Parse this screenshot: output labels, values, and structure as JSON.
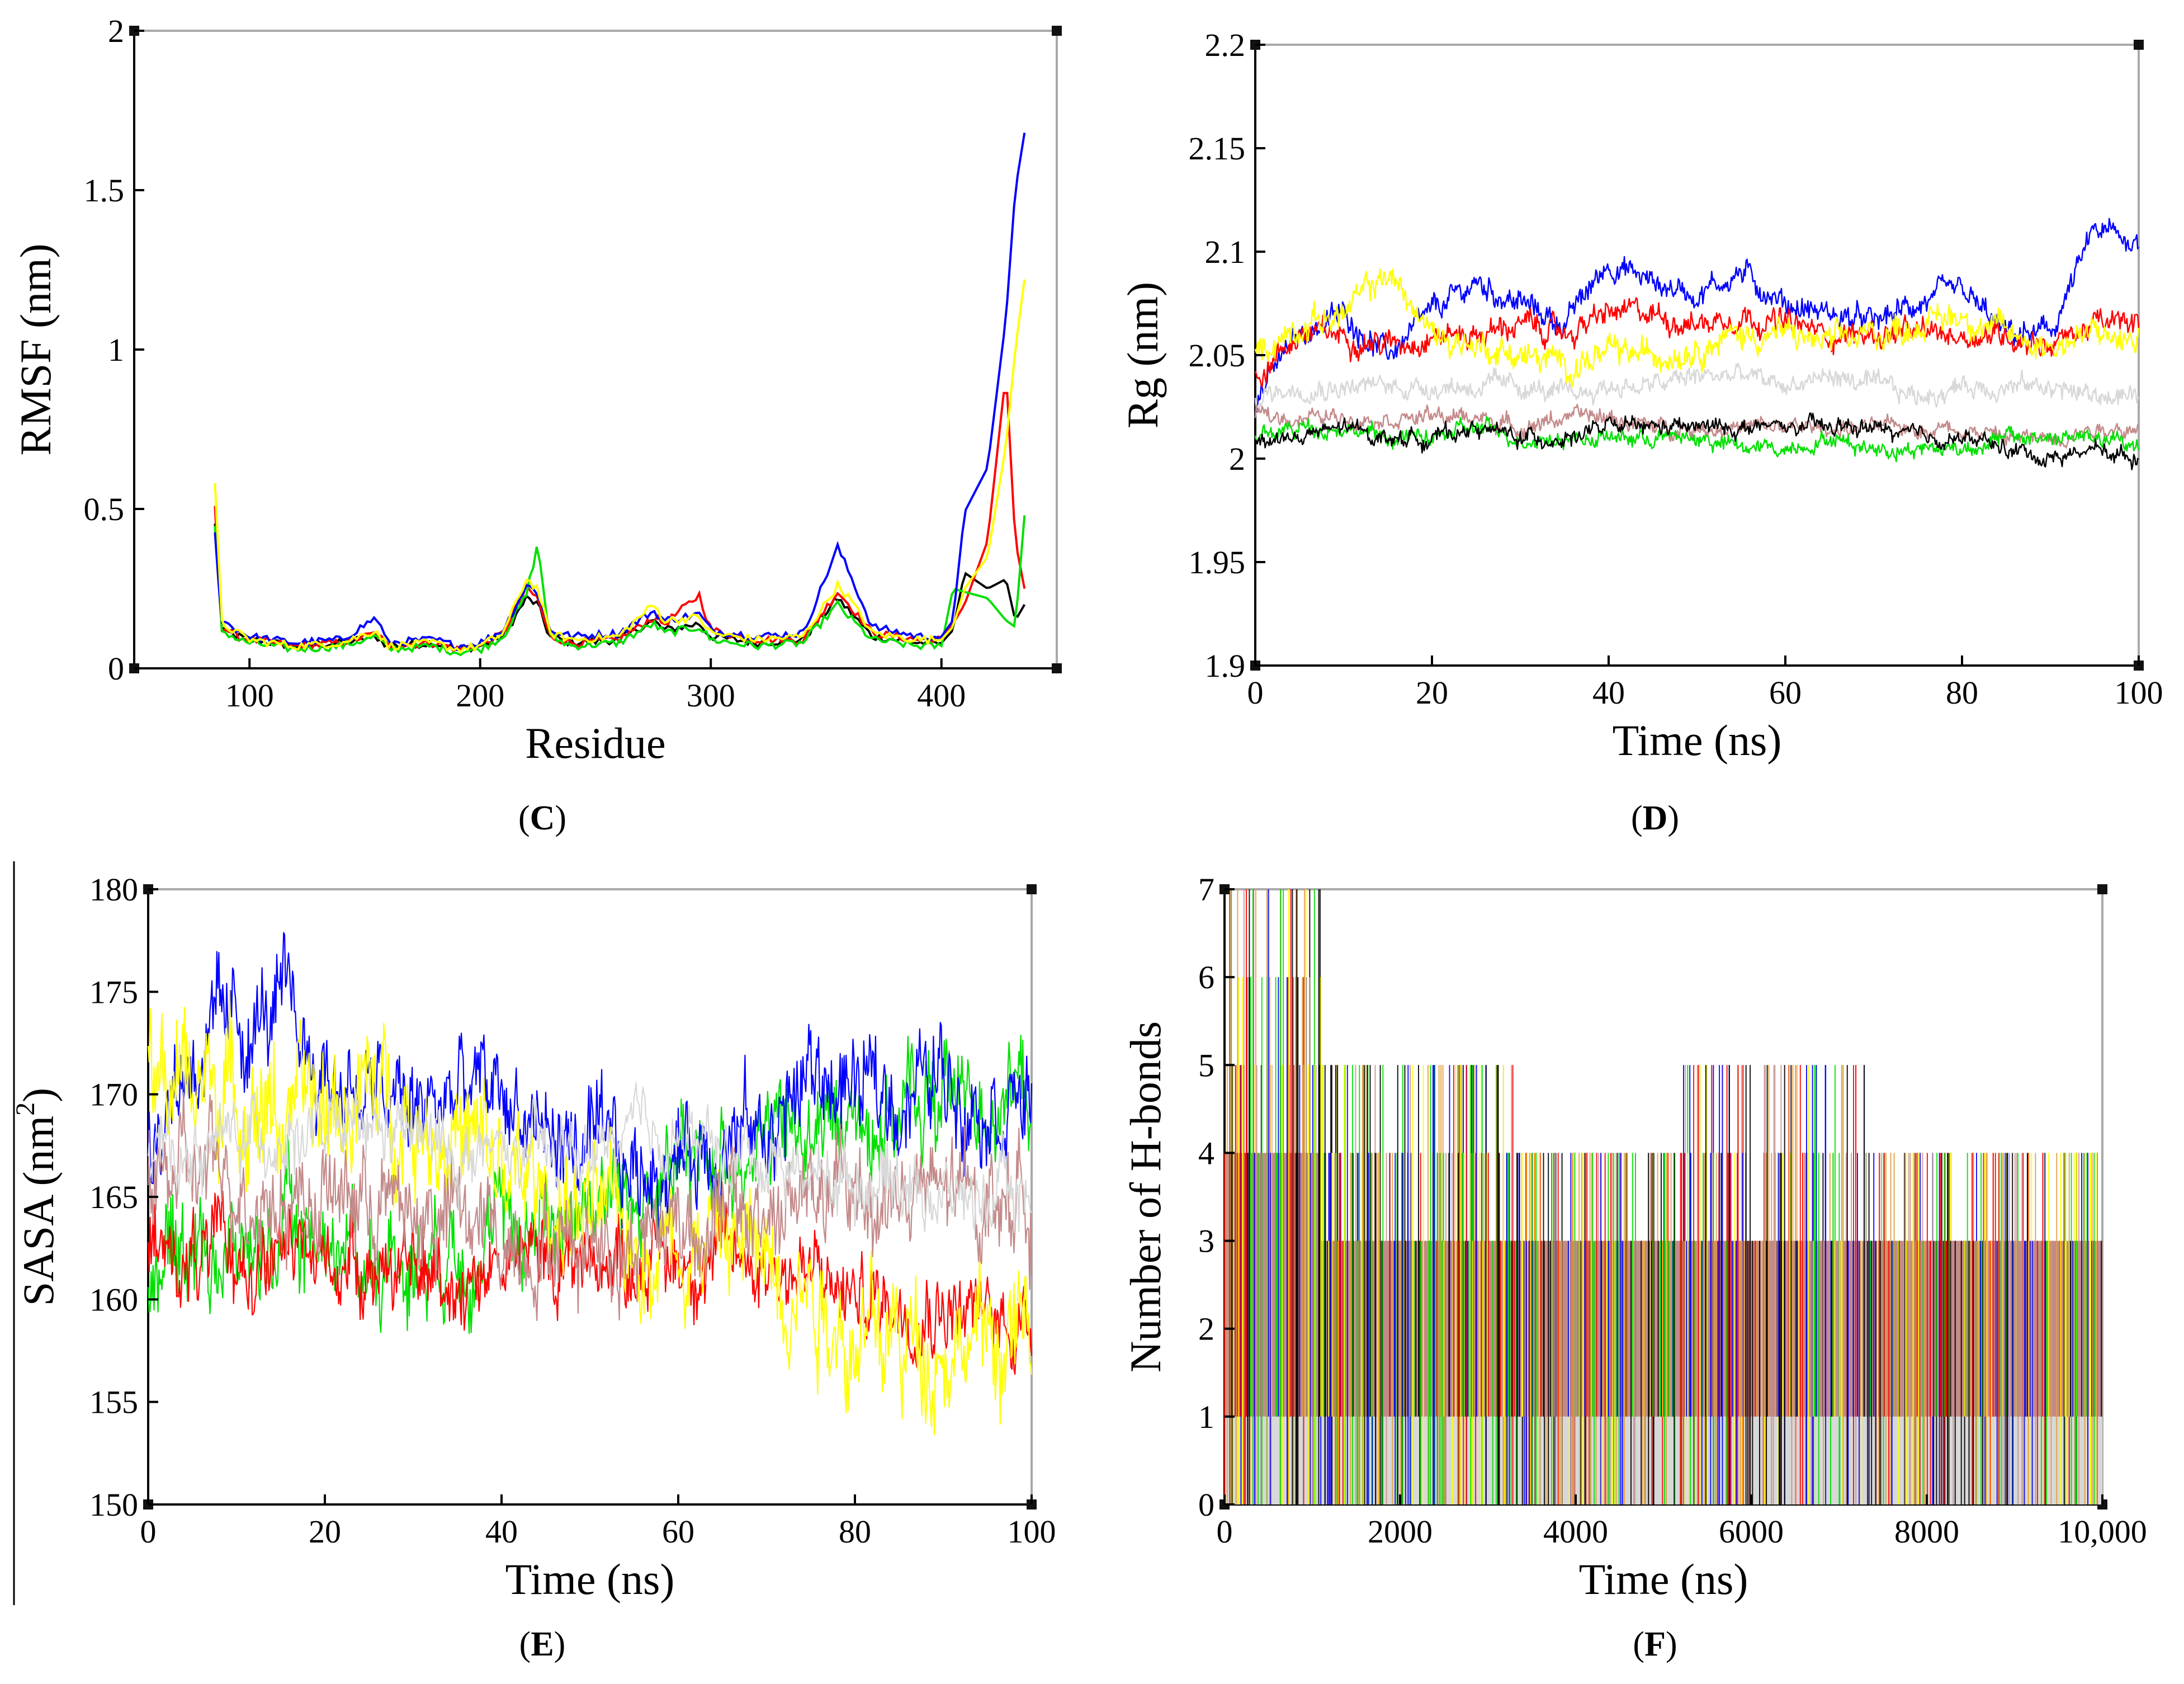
{
  "figure": {
    "captions": [
      "C",
      "D",
      "E",
      "F"
    ]
  },
  "colors": {
    "black": "#000000",
    "red": "#ff0000",
    "green": "#00e000",
    "blue": "#0000ff",
    "yellow": "#ffff00",
    "grey": "#d8d8d8",
    "brown": "#c48a8a",
    "orange": "#e0a040"
  },
  "chart_data": [
    {
      "panel": "C",
      "type": "line",
      "title": "",
      "xlabel": "Residue",
      "ylabel": "RMSF (nm)",
      "xlim": [
        50,
        450
      ],
      "ylim": [
        0,
        2
      ],
      "xticks": [
        "100",
        "200",
        "300",
        "400"
      ],
      "yticks": [
        "0",
        "0.5",
        "1",
        "1.5",
        "2"
      ],
      "x": [
        85,
        88,
        95,
        100,
        110,
        120,
        140,
        155,
        160,
        180,
        190,
        200,
        210,
        220,
        225,
        230,
        240,
        260,
        275,
        280,
        295,
        300,
        320,
        340,
        355,
        360,
        370,
        390,
        400,
        405,
        410,
        420,
        428,
        432,
        436
      ],
      "series": [
        {
          "name": "black",
          "color": "#000000",
          "values": [
            0.45,
            0.12,
            0.1,
            0.09,
            0.08,
            0.07,
            0.08,
            0.1,
            0.07,
            0.08,
            0.06,
            0.07,
            0.1,
            0.22,
            0.2,
            0.1,
            0.08,
            0.09,
            0.15,
            0.12,
            0.14,
            0.1,
            0.08,
            0.09,
            0.22,
            0.18,
            0.1,
            0.08,
            0.08,
            0.12,
            0.3,
            0.25,
            0.28,
            0.15,
            0.2
          ]
        },
        {
          "name": "red",
          "color": "#ff0000",
          "values": [
            0.5,
            0.13,
            0.1,
            0.09,
            0.08,
            0.07,
            0.08,
            0.11,
            0.07,
            0.08,
            0.06,
            0.07,
            0.11,
            0.25,
            0.22,
            0.1,
            0.08,
            0.09,
            0.16,
            0.14,
            0.23,
            0.12,
            0.09,
            0.09,
            0.24,
            0.2,
            0.11,
            0.09,
            0.09,
            0.14,
            0.2,
            0.4,
            0.93,
            0.4,
            0.25
          ]
        },
        {
          "name": "green",
          "color": "#00e000",
          "values": [
            0.44,
            0.12,
            0.09,
            0.08,
            0.07,
            0.06,
            0.07,
            0.1,
            0.06,
            0.07,
            0.05,
            0.06,
            0.1,
            0.23,
            0.39,
            0.1,
            0.07,
            0.08,
            0.14,
            0.11,
            0.13,
            0.09,
            0.07,
            0.08,
            0.2,
            0.16,
            0.09,
            0.07,
            0.07,
            0.25,
            0.24,
            0.22,
            0.15,
            0.13,
            0.48
          ]
        },
        {
          "name": "blue",
          "color": "#0000ff",
          "values": [
            0.42,
            0.15,
            0.12,
            0.1,
            0.09,
            0.08,
            0.09,
            0.16,
            0.08,
            0.09,
            0.07,
            0.08,
            0.12,
            0.26,
            0.24,
            0.12,
            0.1,
            0.11,
            0.18,
            0.15,
            0.17,
            0.12,
            0.1,
            0.11,
            0.38,
            0.3,
            0.13,
            0.1,
            0.1,
            0.15,
            0.49,
            0.63,
            1.1,
            1.5,
            1.68
          ]
        },
        {
          "name": "yellow",
          "color": "#ffff00",
          "values": [
            0.57,
            0.14,
            0.11,
            0.09,
            0.08,
            0.07,
            0.08,
            0.12,
            0.07,
            0.08,
            0.06,
            0.07,
            0.11,
            0.28,
            0.25,
            0.11,
            0.09,
            0.1,
            0.2,
            0.15,
            0.16,
            0.11,
            0.09,
            0.1,
            0.26,
            0.22,
            0.11,
            0.09,
            0.09,
            0.13,
            0.25,
            0.35,
            0.7,
            1.0,
            1.22
          ]
        }
      ]
    },
    {
      "panel": "D",
      "type": "line",
      "title": "",
      "xlabel": "Time (ns)",
      "ylabel": "Rg (nm)",
      "xlim": [
        0,
        100
      ],
      "ylim": [
        1.9,
        2.2
      ],
      "xticks": [
        "0",
        "20",
        "40",
        "60",
        "80",
        "100"
      ],
      "yticks": [
        "1.9",
        "1.95",
        "2",
        "2.05",
        "2.1",
        "2.15",
        "2.2"
      ],
      "x": [
        0,
        5,
        10,
        15,
        20,
        25,
        30,
        35,
        40,
        45,
        50,
        55,
        60,
        65,
        70,
        75,
        80,
        85,
        90,
        95,
        100
      ],
      "series": [
        {
          "name": "blue",
          "color": "#0000ff",
          "values": [
            2.03,
            2.06,
            2.07,
            2.05,
            2.07,
            2.085,
            2.075,
            2.065,
            2.095,
            2.085,
            2.08,
            2.09,
            2.075,
            2.07,
            2.065,
            2.075,
            2.08,
            2.06,
            2.06,
            2.11,
            2.105
          ],
          "noise": 0.006
        },
        {
          "name": "red",
          "color": "#ff0000",
          "values": [
            2.04,
            2.06,
            2.06,
            2.055,
            2.06,
            2.06,
            2.065,
            2.06,
            2.07,
            2.07,
            2.065,
            2.07,
            2.065,
            2.06,
            2.06,
            2.06,
            2.06,
            2.06,
            2.055,
            2.065,
            2.065
          ],
          "noise": 0.006
        },
        {
          "name": "yellow",
          "color": "#ffff00",
          "values": [
            2.05,
            2.065,
            2.07,
            2.09,
            2.06,
            2.055,
            2.05,
            2.045,
            2.05,
            2.05,
            2.055,
            2.06,
            2.06,
            2.055,
            2.06,
            2.065,
            2.07,
            2.06,
            2.055,
            2.06,
            2.055
          ],
          "noise": 0.007
        },
        {
          "name": "grey",
          "color": "#d8d8d8",
          "values": [
            2.03,
            2.035,
            2.035,
            2.035,
            2.035,
            2.035,
            2.035,
            2.03,
            2.035,
            2.035,
            2.04,
            2.04,
            2.035,
            2.04,
            2.035,
            2.03,
            2.035,
            2.035,
            2.035,
            2.03,
            2.03
          ],
          "noise": 0.005
        },
        {
          "name": "brown",
          "color": "#c48a8a",
          "values": [
            2.02,
            2.02,
            2.02,
            2.02,
            2.02,
            2.02,
            2.015,
            2.02,
            2.02,
            2.015,
            2.015,
            2.015,
            2.015,
            2.015,
            2.015,
            2.015,
            2.015,
            2.01,
            2.01,
            2.015,
            2.015
          ],
          "noise": 0.004
        },
        {
          "name": "green",
          "color": "#00e000",
          "values": [
            2.01,
            2.015,
            2.015,
            2.01,
            2.01,
            2.015,
            2.01,
            2.01,
            2.01,
            2.01,
            2.01,
            2.005,
            2.005,
            2.01,
            2.005,
            2.005,
            2.005,
            2.01,
            2.01,
            2.01,
            2.005
          ],
          "noise": 0.004
        },
        {
          "name": "black",
          "color": "#000000",
          "values": [
            2.01,
            2.01,
            2.015,
            2.01,
            2.01,
            2.015,
            2.01,
            2.01,
            2.015,
            2.015,
            2.015,
            2.015,
            2.015,
            2.015,
            2.015,
            2.01,
            2.01,
            2.005,
            2.0,
            2.005,
            2.0
          ],
          "noise": 0.004
        }
      ]
    },
    {
      "panel": "E",
      "type": "line",
      "title": "",
      "xlabel": "Time (ns)",
      "ylabel": "SASA (nm2)",
      "xlim": [
        0,
        100
      ],
      "ylim": [
        150,
        180
      ],
      "xticks": [
        "0",
        "20",
        "40",
        "60",
        "80",
        "100"
      ],
      "yticks": [
        "150",
        "155",
        "160",
        "165",
        "170",
        "175",
        "180"
      ],
      "x": [
        0,
        5,
        10,
        15,
        20,
        25,
        30,
        35,
        40,
        45,
        50,
        55,
        60,
        65,
        70,
        75,
        80,
        85,
        90,
        95,
        100
      ],
      "series": [
        {
          "name": "green",
          "color": "#00e000",
          "values": [
            162,
            163,
            162,
            163,
            163,
            162,
            162,
            163,
            163,
            164,
            165,
            165,
            166,
            167,
            168,
            168,
            169,
            169,
            170,
            170,
            170
          ],
          "noise": 2.5
        },
        {
          "name": "red",
          "color": "#ff0000",
          "values": [
            162,
            162,
            162,
            162,
            162,
            162,
            161,
            161,
            162,
            162,
            162,
            162,
            162,
            162,
            162,
            161,
            160,
            160,
            160,
            159,
            159
          ],
          "noise": 2.0
        },
        {
          "name": "blue",
          "color": "#0000ff",
          "values": [
            168,
            172,
            173,
            174,
            171,
            170,
            169,
            170,
            170,
            168,
            167,
            166,
            167,
            168,
            168,
            171,
            170,
            170,
            171,
            170,
            170
          ],
          "noise": 2.5
        },
        {
          "name": "yellow",
          "color": "#ffff00",
          "values": [
            170,
            171,
            170,
            169,
            169,
            170,
            169,
            168,
            166,
            165,
            164,
            163,
            163,
            163,
            162,
            161,
            158,
            158,
            158,
            158,
            158
          ],
          "noise": 3.0
        },
        {
          "name": "brown",
          "color": "#c48a8a",
          "values": [
            166,
            166,
            166,
            165,
            165,
            165,
            164,
            164,
            163,
            163,
            163,
            163,
            164,
            164,
            164,
            165,
            165,
            165,
            165,
            165,
            165
          ],
          "noise": 2.5
        },
        {
          "name": "grey",
          "color": "#d8d8d8",
          "values": [
            167,
            167,
            168,
            168,
            168,
            168,
            168,
            167,
            167,
            167,
            167,
            168,
            168,
            167,
            167,
            166,
            166,
            166,
            165,
            165,
            165
          ],
          "noise": 1.6
        }
      ]
    },
    {
      "panel": "F",
      "type": "bar",
      "title": "",
      "xlabel": "Time (ns)",
      "ylabel": "Number of H-bonds",
      "xlim": [
        0,
        10000
      ],
      "ylim": [
        0,
        7
      ],
      "xticks": [
        "0",
        "2000",
        "4000",
        "6000",
        "8000",
        "10,000"
      ],
      "yticks": [
        "0",
        "1",
        "2",
        "3",
        "4",
        "5",
        "6",
        "7"
      ],
      "bands": [
        {
          "name": "grey",
          "color": "#d8d8d8",
          "x0": 0,
          "x1": 10000,
          "y0": 0,
          "y1": 1
        },
        {
          "name": "brown",
          "color": "#c48a8a",
          "x0": 0,
          "x1": 1100,
          "y0": 1,
          "y1": 4
        },
        {
          "name": "brown",
          "color": "#c48a8a",
          "x0": 1100,
          "x1": 10000,
          "y0": 1,
          "y1": 3
        }
      ],
      "series": [
        {
          "name": "brown",
          "color": "#c48a8a"
        },
        {
          "name": "yellow",
          "color": "#ffff00"
        },
        {
          "name": "blue",
          "color": "#0000ff"
        },
        {
          "name": "green",
          "color": "#00e000"
        },
        {
          "name": "red",
          "color": "#ff0000"
        },
        {
          "name": "orange",
          "color": "#e0a040"
        },
        {
          "name": "black",
          "color": "#000000"
        }
      ]
    }
  ]
}
